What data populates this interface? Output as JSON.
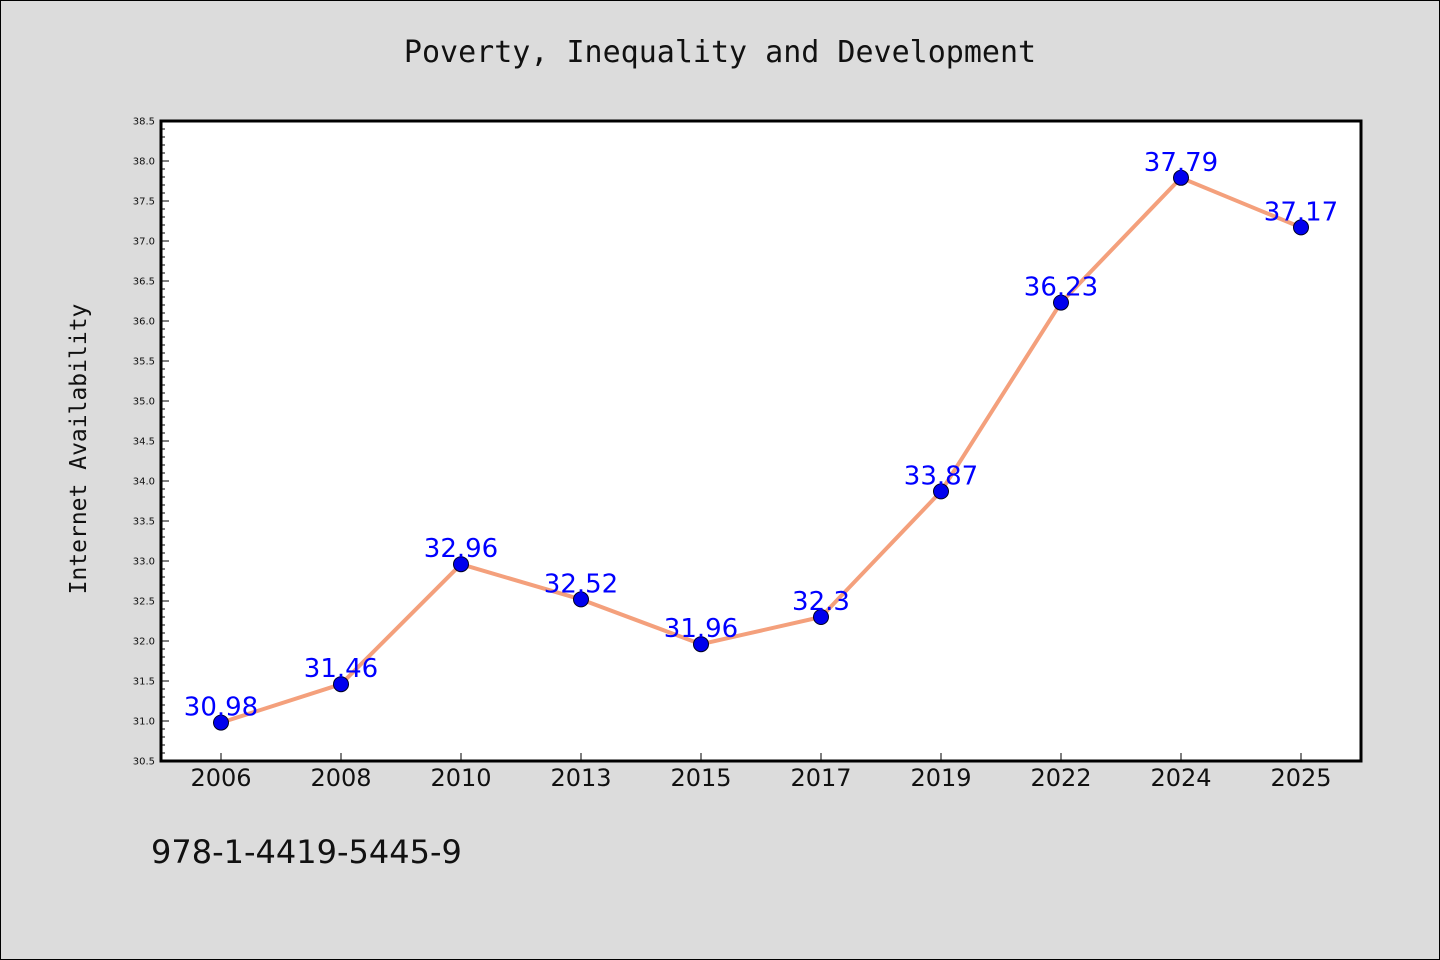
{
  "page": {
    "background": "#dcdcdc",
    "footer_code": "978-1-4419-5445-9"
  },
  "chart_data": {
    "type": "line",
    "title": "Poverty, Inequality and Development",
    "xlabel": "",
    "ylabel": "Internet Availability",
    "categories": [
      "2006",
      "2008",
      "2010",
      "2013",
      "2015",
      "2017",
      "2019",
      "2022",
      "2024",
      "2025"
    ],
    "series": [
      {
        "values": [
          30.98,
          31.46,
          32.96,
          32.52,
          31.96,
          32.3,
          33.87,
          36.23,
          37.79,
          37.17
        ],
        "labels": [
          "30.98",
          "31.46",
          "32.96",
          "32.52",
          "31.96",
          "32.3",
          "33.87",
          "36.23",
          "37.79",
          "37.17"
        ],
        "line_color": "#f4a07c",
        "marker_color": "#0000ee",
        "label_color": "#0000ff"
      }
    ],
    "ylim": [
      30.5,
      38.5
    ],
    "yticks": [
      "30.5",
      "31.0",
      "31.5",
      "32.0",
      "32.5",
      "33.0",
      "33.5",
      "34.0",
      "34.5",
      "35.0",
      "35.5",
      "36.0",
      "36.5",
      "37.0",
      "37.5",
      "38.0",
      "38.5"
    ],
    "grid": false,
    "legend": "none",
    "plot_background": "#ffffff"
  }
}
